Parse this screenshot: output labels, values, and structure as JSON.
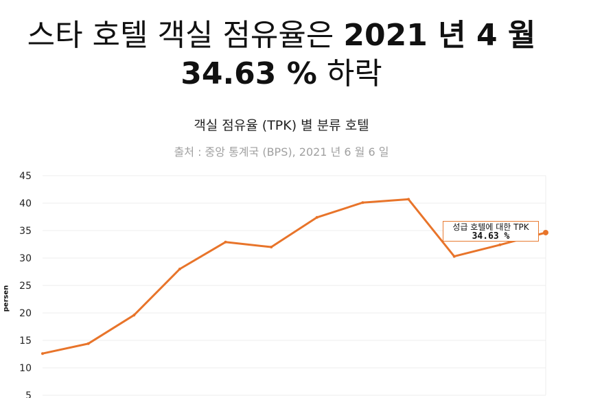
{
  "headline": {
    "line1_prefix": "스타 호텔 객실 점유율은",
    "line1_bold": "2021 년 4 월",
    "line2_bold": "34.63 %",
    "line2_suffix": "하락"
  },
  "chart_data": {
    "type": "line",
    "title": "객실 점유율 (TPK) 별 분류 호텔",
    "subtitle": "출처 : 중앙 통계국 (BPS), 2021 년 6 월 6 일",
    "ylabel": "persen",
    "ylim": [
      5,
      45
    ],
    "yticks": [
      45,
      40,
      35,
      30,
      25,
      20,
      15,
      10,
      5
    ],
    "grid": true,
    "line_color": "#e8742a",
    "series": [
      {
        "values": [
          12.6,
          14.4,
          19.6,
          28.0,
          32.9,
          32.0,
          37.4,
          40.1,
          40.7,
          30.3,
          32.4,
          34.63
        ]
      }
    ],
    "tooltip": {
      "label": "성급 호텔에 대한 TPK",
      "value": "34.63 %"
    }
  }
}
